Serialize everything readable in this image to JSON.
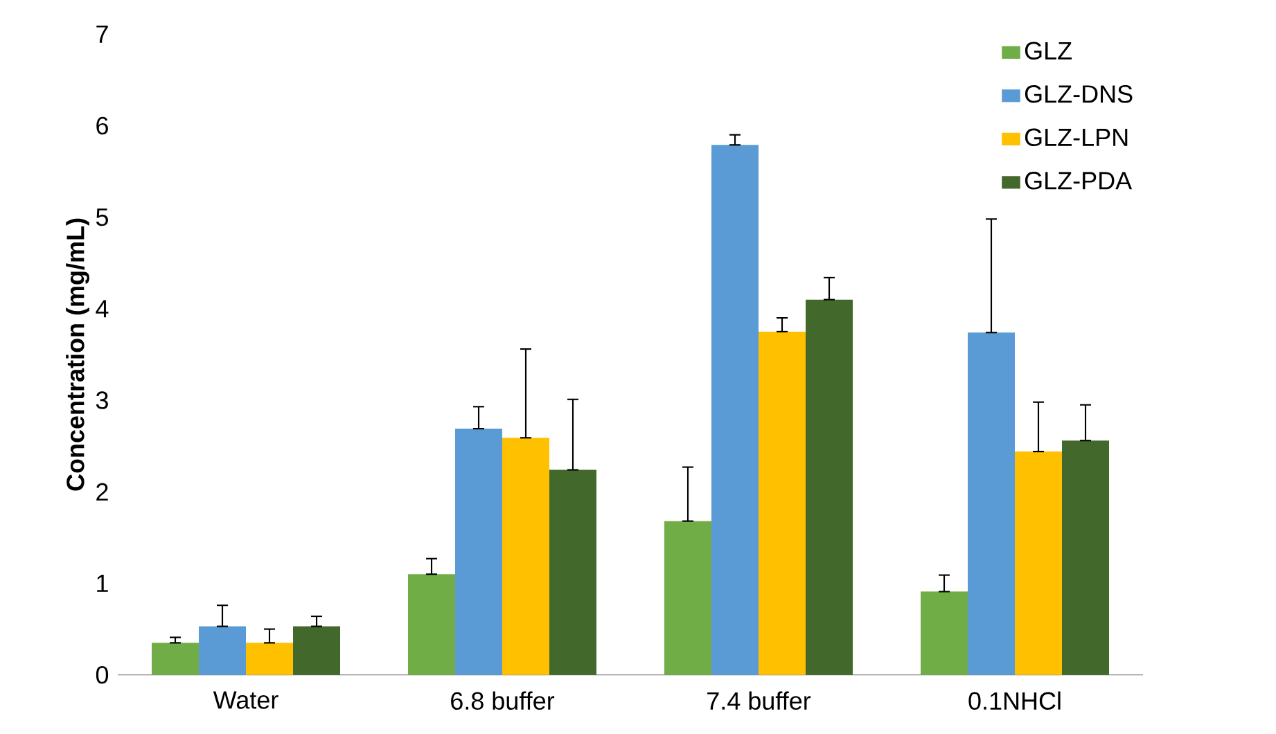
{
  "chart_data": {
    "type": "bar",
    "ylabel": "**Concentration (mg/mL)**",
    "categories": [
      "Water",
      "6.8 buffer",
      "7.4 buffer",
      "0.1NHCl"
    ],
    "ylim": [
      0,
      7
    ],
    "yticks": [
      0,
      1,
      2,
      3,
      4,
      5,
      6,
      7
    ],
    "grid": false,
    "legend": "top right",
    "series": [
      {
        "name": "GLZ",
        "color": "#70ad47",
        "values": [
          0.35,
          1.1,
          1.68,
          0.91
        ],
        "errors": [
          [
            0.35,
            0.41
          ],
          [
            1.1,
            1.27
          ],
          [
            1.68,
            2.27
          ],
          [
            0.91,
            1.09
          ]
        ]
      },
      {
        "name": "GLZ-DNS",
        "color": "#5b9bd5",
        "values": [
          0.53,
          2.69,
          5.79,
          3.74
        ],
        "errors": [
          [
            0.53,
            0.76
          ],
          [
            2.69,
            2.93
          ],
          [
            5.79,
            5.9
          ],
          [
            3.74,
            4.98
          ]
        ]
      },
      {
        "name": "GLZ-LPN",
        "color": "#ffc000",
        "values": [
          0.35,
          2.59,
          3.75,
          2.44
        ],
        "errors": [
          [
            0.35,
            0.5
          ],
          [
            2.59,
            3.56
          ],
          [
            3.75,
            3.9
          ],
          [
            2.44,
            2.98
          ]
        ]
      },
      {
        "name": "GLZ-PDA",
        "color": "#43682b",
        "values": [
          0.53,
          2.24,
          4.1,
          2.56
        ],
        "errors": [
          [
            0.53,
            0.64
          ],
          [
            2.24,
            3.01
          ],
          [
            4.1,
            4.34
          ],
          [
            2.56,
            2.95
          ]
        ]
      }
    ]
  }
}
